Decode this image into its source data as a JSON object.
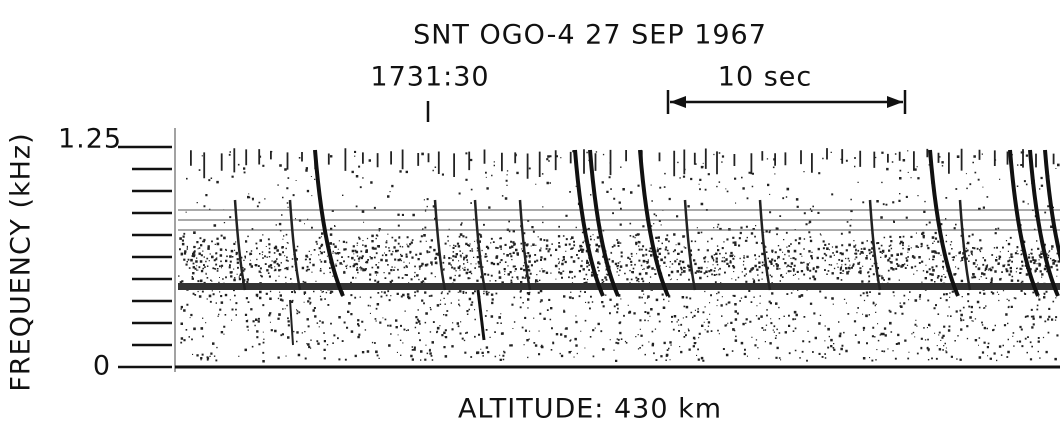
{
  "title": "SNT OGO-4 27 SEP 1967",
  "time_marker": "1731:30",
  "scale_bar": "10 sec",
  "y_axis": {
    "label": "FREQUENCY (kHz)",
    "ticks": [
      1.25,
      0
    ]
  },
  "x_label": "ALTITUDE: 430 km"
}
